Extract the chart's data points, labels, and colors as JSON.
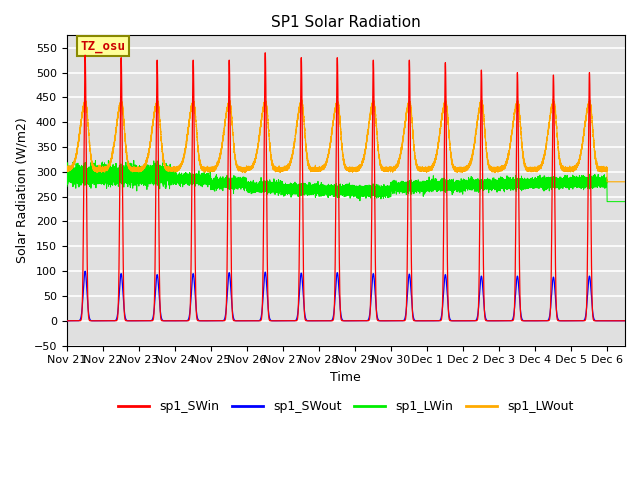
{
  "title": "SP1 Solar Radiation",
  "xlabel": "Time",
  "ylabel": "Solar Radiation (W/m2)",
  "ylim": [
    -50,
    575
  ],
  "xlim": [
    0,
    15.5
  ],
  "yticks": [
    -50,
    0,
    50,
    100,
    150,
    200,
    250,
    300,
    350,
    400,
    450,
    500,
    550
  ],
  "annotation_text": "TZ_osu",
  "annotation_color": "#cc0000",
  "annotation_bg": "#ffff99",
  "annotation_border": "#888800",
  "colors": {
    "sp1_SWin": "#ff0000",
    "sp1_SWout": "#0000ff",
    "sp1_LWin": "#00ee00",
    "sp1_LWout": "#ffaa00"
  },
  "background_color": "#e0e0e0",
  "grid_color": "#ffffff",
  "tick_labels": [
    "Nov 21",
    "Nov 22",
    "Nov 23",
    "Nov 24",
    "Nov 25",
    "Nov 26",
    "Nov 27",
    "Nov 28",
    "Nov 29",
    "Nov 30",
    "Dec 1",
    "Dec 2",
    "Dec 3",
    "Dec 4",
    "Dec 5",
    "Dec 6"
  ],
  "sw_in_peaks": [
    535,
    530,
    525,
    525,
    525,
    540,
    530,
    530,
    525,
    525,
    520,
    505,
    500,
    495,
    500
  ],
  "sw_out_peaks": [
    100,
    95,
    93,
    95,
    97,
    98,
    96,
    97,
    95,
    94,
    93,
    90,
    90,
    88,
    90
  ],
  "lw_out_base": 305,
  "lw_out_peak_add": 135,
  "lw_in_base": 290
}
